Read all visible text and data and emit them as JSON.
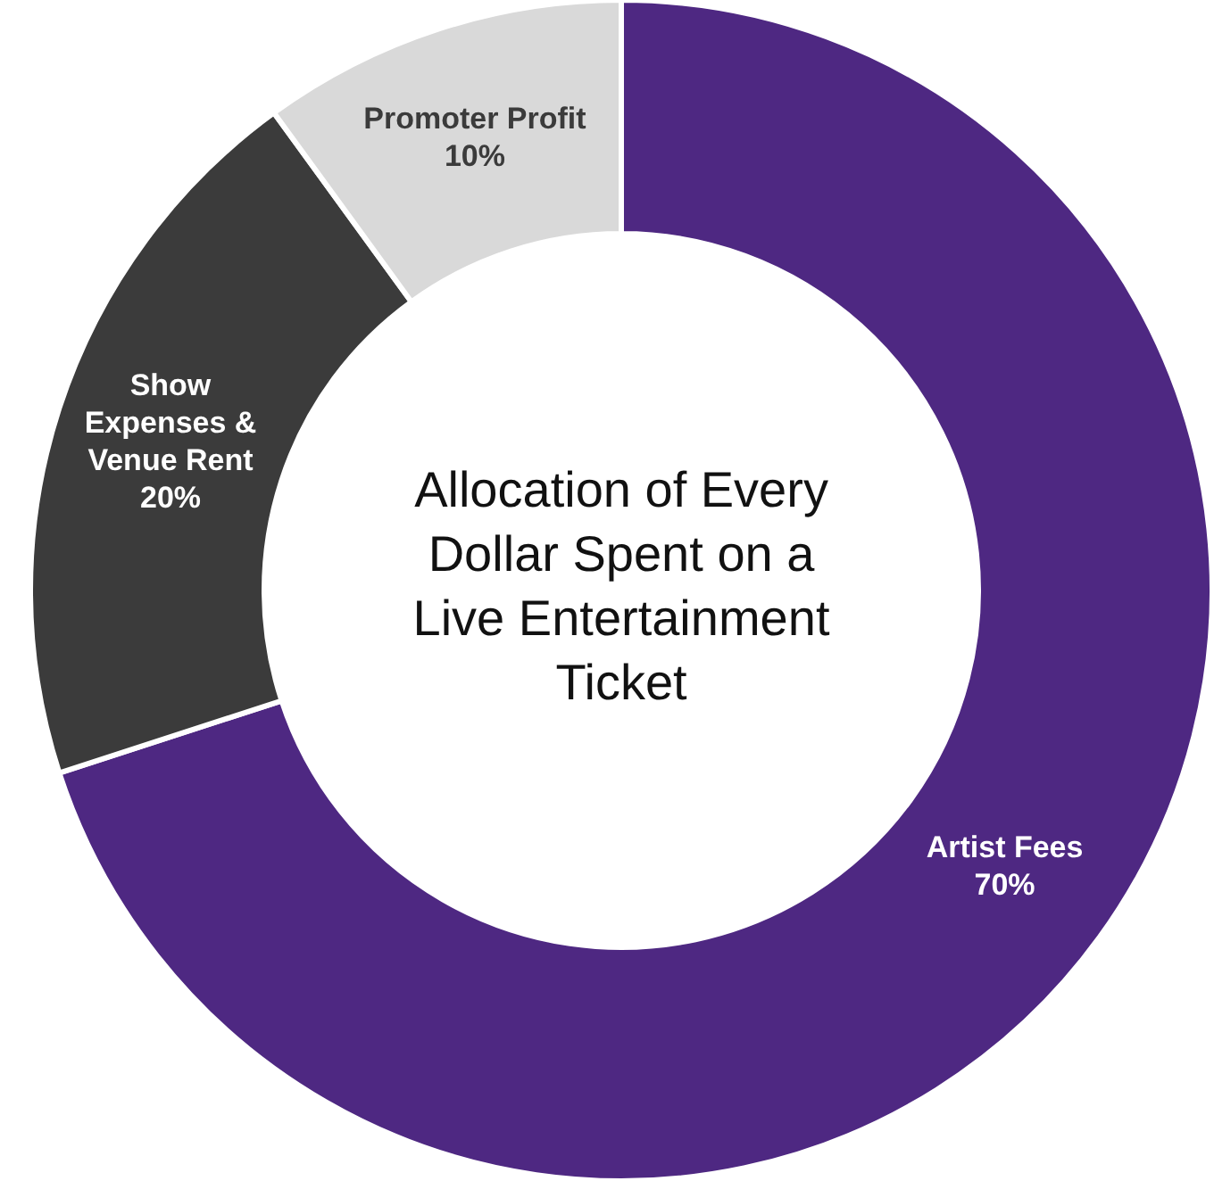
{
  "chart_data": {
    "type": "donut",
    "title": "Allocation of Every Dollar Spent on a Live Entertainment Ticket",
    "categories": [
      "Artist Fees",
      "Show Expenses & Venue Rent",
      "Promoter Profit"
    ],
    "values": [
      70,
      20,
      10
    ],
    "colors": [
      "#4e2882",
      "#3b3b3b",
      "#d9d9d9"
    ],
    "value_labels": [
      "70%",
      "20%",
      "10%"
    ]
  }
}
